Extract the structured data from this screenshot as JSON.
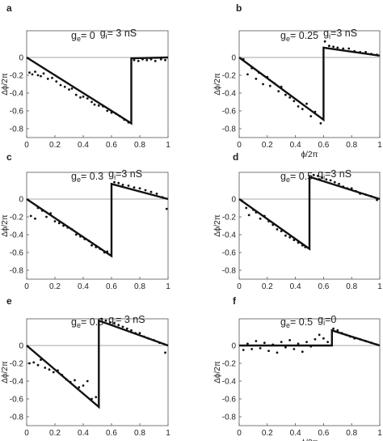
{
  "chart_data": [
    {
      "panel": "a",
      "type": "scatter",
      "annotation": {
        "ge_label": "g",
        "ge_sub": "e",
        "ge_value": "= 0",
        "gi_label": "g",
        "gi_sub": "i",
        "gi_value": "= 3 nS"
      },
      "xlabel": "",
      "ylabel": "Δϕ/2π",
      "xlim": [
        0,
        1
      ],
      "ylim": [
        -0.9,
        0.3
      ],
      "xticks": [
        "0",
        "0.2",
        "0.4",
        "0.6",
        "0.8",
        "1"
      ],
      "yticks": [
        "0",
        "-0.2",
        "-0.4",
        "-0.6",
        "-0.8"
      ],
      "model_line": [
        [
          0,
          0
        ],
        [
          0.74,
          -0.74
        ],
        [
          0.74,
          -0.01
        ],
        [
          1,
          0
        ]
      ],
      "points": [
        [
          0.02,
          -0.17
        ],
        [
          0.04,
          -0.19
        ],
        [
          0.06,
          -0.16
        ],
        [
          0.08,
          -0.2
        ],
        [
          0.1,
          -0.21
        ],
        [
          0.12,
          -0.18
        ],
        [
          0.15,
          -0.24
        ],
        [
          0.18,
          -0.23
        ],
        [
          0.21,
          -0.27
        ],
        [
          0.24,
          -0.31
        ],
        [
          0.27,
          -0.33
        ],
        [
          0.3,
          -0.36
        ],
        [
          0.32,
          -0.35
        ],
        [
          0.35,
          -0.42
        ],
        [
          0.38,
          -0.45
        ],
        [
          0.4,
          -0.44
        ],
        [
          0.43,
          -0.46
        ],
        [
          0.46,
          -0.5
        ],
        [
          0.48,
          -0.53
        ],
        [
          0.51,
          -0.54
        ],
        [
          0.54,
          -0.55
        ],
        [
          0.57,
          -0.6
        ],
        [
          0.6,
          -0.62
        ],
        [
          0.63,
          -0.63
        ],
        [
          0.66,
          -0.66
        ],
        [
          0.69,
          -0.7
        ],
        [
          0.72,
          -0.73
        ],
        [
          0.76,
          -0.03
        ],
        [
          0.79,
          -0.04
        ],
        [
          0.82,
          -0.02
        ],
        [
          0.85,
          -0.03
        ],
        [
          0.88,
          -0.02
        ],
        [
          0.91,
          -0.04
        ],
        [
          0.95,
          -0.02
        ],
        [
          0.98,
          -0.03
        ]
      ]
    },
    {
      "panel": "b",
      "type": "scatter",
      "annotation": {
        "ge_label": "g",
        "ge_sub": "e",
        "ge_value": "= 0.25",
        "gi_label": "g",
        "gi_sub": "i",
        "gi_value": "=3 nS"
      },
      "xlabel": "ϕ/2π",
      "ylabel": "Δϕ/2π",
      "xlim": [
        0,
        1
      ],
      "ylim": [
        -0.9,
        0.3
      ],
      "xticks": [
        "0",
        "0.2",
        "0.4",
        "0.6",
        "0.8",
        "1"
      ],
      "yticks": [
        "0",
        "-0.2",
        "-0.4",
        "-0.6",
        "-0.8"
      ],
      "model_line": [
        [
          0,
          0
        ],
        [
          0.6,
          -0.7
        ],
        [
          0.6,
          0.11
        ],
        [
          1,
          0.02
        ]
      ],
      "points": [
        [
          0.03,
          -0.02
        ],
        [
          0.06,
          -0.19
        ],
        [
          0.09,
          -0.12
        ],
        [
          0.12,
          -0.24
        ],
        [
          0.14,
          -0.17
        ],
        [
          0.17,
          -0.3
        ],
        [
          0.2,
          -0.22
        ],
        [
          0.22,
          -0.32
        ],
        [
          0.25,
          -0.29
        ],
        [
          0.28,
          -0.38
        ],
        [
          0.3,
          -0.33
        ],
        [
          0.33,
          -0.42
        ],
        [
          0.36,
          -0.45
        ],
        [
          0.39,
          -0.49
        ],
        [
          0.42,
          -0.55
        ],
        [
          0.45,
          -0.58
        ],
        [
          0.48,
          -0.52
        ],
        [
          0.51,
          -0.66
        ],
        [
          0.54,
          -0.61
        ],
        [
          0.58,
          -0.74
        ],
        [
          0.61,
          0.18
        ],
        [
          0.64,
          0.13
        ],
        [
          0.67,
          0.12
        ],
        [
          0.7,
          0.11
        ],
        [
          0.74,
          0.1
        ],
        [
          0.78,
          0.1
        ],
        [
          0.82,
          0.07
        ],
        [
          0.86,
          0.06
        ],
        [
          0.9,
          0.06
        ],
        [
          0.94,
          0.04
        ],
        [
          0.98,
          0.03
        ]
      ]
    },
    {
      "panel": "c",
      "type": "scatter",
      "annotation": {
        "ge_label": "g",
        "ge_sub": "e",
        "ge_value": "= 0.3",
        "gi_label": "g",
        "gi_sub": "i",
        "gi_value": "=3 nS"
      },
      "xlabel": "",
      "ylabel": "Δϕ/2π",
      "xlim": [
        0,
        1
      ],
      "ylim": [
        -0.9,
        0.3
      ],
      "xticks": [
        "0",
        "0.2",
        "0.4",
        "0.6",
        "0.8",
        "1"
      ],
      "yticks": [
        "0",
        "-0.2",
        "-0.4",
        "-0.6",
        "-0.8"
      ],
      "model_line": [
        [
          0,
          0
        ],
        [
          0.6,
          -0.64
        ],
        [
          0.6,
          0.17
        ],
        [
          1,
          0
        ]
      ],
      "points": [
        [
          0.03,
          -0.19
        ],
        [
          0.06,
          -0.22
        ],
        [
          0.08,
          -0.1
        ],
        [
          0.11,
          -0.13
        ],
        [
          0.14,
          -0.2
        ],
        [
          0.17,
          -0.16
        ],
        [
          0.2,
          -0.25
        ],
        [
          0.23,
          -0.27
        ],
        [
          0.26,
          -0.3
        ],
        [
          0.29,
          -0.32
        ],
        [
          0.32,
          -0.34
        ],
        [
          0.35,
          -0.4
        ],
        [
          0.38,
          -0.42
        ],
        [
          0.41,
          -0.45
        ],
        [
          0.44,
          -0.47
        ],
        [
          0.46,
          -0.52
        ],
        [
          0.49,
          -0.54
        ],
        [
          0.52,
          -0.56
        ],
        [
          0.55,
          -0.6
        ],
        [
          0.57,
          -0.59
        ],
        [
          0.62,
          0.19
        ],
        [
          0.65,
          0.18
        ],
        [
          0.68,
          0.16
        ],
        [
          0.72,
          0.15
        ],
        [
          0.76,
          0.13
        ],
        [
          0.8,
          0.12
        ],
        [
          0.84,
          0.1
        ],
        [
          0.88,
          0.08
        ],
        [
          0.92,
          0.06
        ],
        [
          0.96,
          0.02
        ],
        [
          0.99,
          -0.11
        ]
      ]
    },
    {
      "panel": "d",
      "type": "scatter",
      "annotation": {
        "ge_label": "g",
        "ge_sub": "e",
        "ge_value": "= 0.5",
        "gi_label": "g",
        "gi_sub": "i",
        "gi_value": "=3 nS"
      },
      "xlabel": "",
      "ylabel": "Δϕ/2π",
      "xlim": [
        0,
        1
      ],
      "ylim": [
        -0.9,
        0.3
      ],
      "xticks": [
        "0",
        "0.2",
        "0.4",
        "0.6",
        "0.8",
        "1"
      ],
      "yticks": [
        "0",
        "-0.2",
        "-0.4",
        "-0.6",
        "-0.8"
      ],
      "model_line": [
        [
          0,
          0
        ],
        [
          0.5,
          -0.56
        ],
        [
          0.5,
          0.25
        ],
        [
          1,
          0
        ]
      ],
      "points": [
        [
          0.02,
          -0.02
        ],
        [
          0.05,
          -0.1
        ],
        [
          0.07,
          -0.18
        ],
        [
          0.1,
          -0.12
        ],
        [
          0.12,
          -0.15
        ],
        [
          0.15,
          -0.22
        ],
        [
          0.18,
          -0.19
        ],
        [
          0.21,
          -0.25
        ],
        [
          0.24,
          -0.29
        ],
        [
          0.27,
          -0.34
        ],
        [
          0.3,
          -0.36
        ],
        [
          0.33,
          -0.41
        ],
        [
          0.36,
          -0.43
        ],
        [
          0.39,
          -0.46
        ],
        [
          0.42,
          -0.49
        ],
        [
          0.45,
          -0.52
        ],
        [
          0.47,
          -0.54
        ],
        [
          0.53,
          0.27
        ],
        [
          0.56,
          0.26
        ],
        [
          0.59,
          0.24
        ],
        [
          0.62,
          0.22
        ],
        [
          0.65,
          0.21
        ],
        [
          0.68,
          0.19
        ],
        [
          0.71,
          0.17
        ],
        [
          0.74,
          0.14
        ],
        [
          0.77,
          0.12
        ],
        [
          0.8,
          0.12
        ],
        [
          0.83,
          0.09
        ],
        [
          0.86,
          0.06
        ],
        [
          0.9,
          0.05
        ],
        [
          0.94,
          0.03
        ],
        [
          0.98,
          -0.01
        ]
      ]
    },
    {
      "panel": "e",
      "type": "scatter",
      "annotation": {
        "ge_label": "g",
        "ge_sub": "e",
        "ge_value": "= 0.8",
        "gi_label": "g",
        "gi_sub": "i",
        "gi_value": "= 3 nS"
      },
      "xlabel": "",
      "ylabel": "Δϕ/2π",
      "xlim": [
        0,
        1
      ],
      "ylim": [
        -0.9,
        0.3
      ],
      "xticks": [
        "0",
        "0.2",
        "0.4",
        "0.6",
        "0.8",
        "1"
      ],
      "yticks": [
        "0",
        "-0.2",
        "-0.4",
        "-0.6",
        "-0.8"
      ],
      "model_line": [
        [
          0,
          0
        ],
        [
          0.51,
          -0.69
        ],
        [
          0.51,
          0.28
        ],
        [
          1,
          0
        ]
      ],
      "points": [
        [
          0.02,
          -0.2
        ],
        [
          0.05,
          -0.19
        ],
        [
          0.08,
          -0.22
        ],
        [
          0.1,
          -0.16
        ],
        [
          0.13,
          -0.25
        ],
        [
          0.16,
          -0.27
        ],
        [
          0.19,
          -0.3
        ],
        [
          0.22,
          -0.28
        ],
        [
          0.25,
          -0.33
        ],
        [
          0.28,
          -0.38
        ],
        [
          0.31,
          -0.41
        ],
        [
          0.34,
          -0.39
        ],
        [
          0.37,
          -0.47
        ],
        [
          0.4,
          -0.45
        ],
        [
          0.43,
          -0.4
        ],
        [
          0.46,
          -0.6
        ],
        [
          0.49,
          -0.58
        ],
        [
          0.53,
          0.3
        ],
        [
          0.56,
          0.28
        ],
        [
          0.59,
          0.26
        ],
        [
          0.62,
          0.25
        ],
        [
          0.65,
          0.23
        ],
        [
          0.68,
          0.21
        ],
        [
          0.71,
          0.19
        ],
        [
          0.74,
          0.17
        ],
        [
          0.77,
          0.14
        ],
        [
          0.8,
          0.14
        ],
        [
          0.83,
          0.1
        ],
        [
          0.86,
          0.08
        ],
        [
          0.9,
          0.06
        ],
        [
          0.94,
          0.03
        ],
        [
          0.98,
          -0.08
        ]
      ]
    },
    {
      "panel": "f",
      "type": "scatter",
      "annotation": {
        "ge_label": "g",
        "ge_sub": "e",
        "ge_value": "= 0.5",
        "gi_label": "g",
        "gi_sub": "i",
        "gi_value": "=0"
      },
      "xlabel": "ϕ/2π",
      "ylabel": "Δϕ/2π",
      "xlim": [
        0,
        1
      ],
      "ylim": [
        -0.9,
        0.3
      ],
      "xticks": [
        "0",
        "0.2",
        "0.4",
        "0.6",
        "0.8",
        "1"
      ],
      "yticks": [
        "0",
        "-0.2",
        "-0.4",
        "-0.6",
        "-0.8"
      ],
      "model_line": [
        [
          0,
          0
        ],
        [
          0.66,
          0
        ],
        [
          0.66,
          0.17
        ],
        [
          1,
          0
        ]
      ],
      "points": [
        [
          0.03,
          -0.05
        ],
        [
          0.06,
          0.02
        ],
        [
          0.09,
          -0.04
        ],
        [
          0.12,
          0.05
        ],
        [
          0.15,
          -0.03
        ],
        [
          0.18,
          0.03
        ],
        [
          0.21,
          -0.06
        ],
        [
          0.24,
          0.01
        ],
        [
          0.27,
          -0.08
        ],
        [
          0.3,
          0.04
        ],
        [
          0.33,
          -0.02
        ],
        [
          0.36,
          0.06
        ],
        [
          0.39,
          -0.04
        ],
        [
          0.42,
          0.02
        ],
        [
          0.45,
          -0.07
        ],
        [
          0.48,
          0.04
        ],
        [
          0.51,
          -0.01
        ],
        [
          0.54,
          0.07
        ],
        [
          0.57,
          0.12
        ],
        [
          0.6,
          0.08
        ],
        [
          0.63,
          0.04
        ],
        [
          0.67,
          0.19
        ],
        [
          0.7,
          0.17
        ],
        [
          0.73,
          0.14
        ],
        [
          0.76,
          0.12
        ],
        [
          0.79,
          0.1
        ],
        [
          0.82,
          0.08
        ],
        [
          0.86,
          0.07
        ],
        [
          0.9,
          0.05
        ],
        [
          0.94,
          0.03
        ],
        [
          0.98,
          0.01
        ]
      ]
    }
  ]
}
